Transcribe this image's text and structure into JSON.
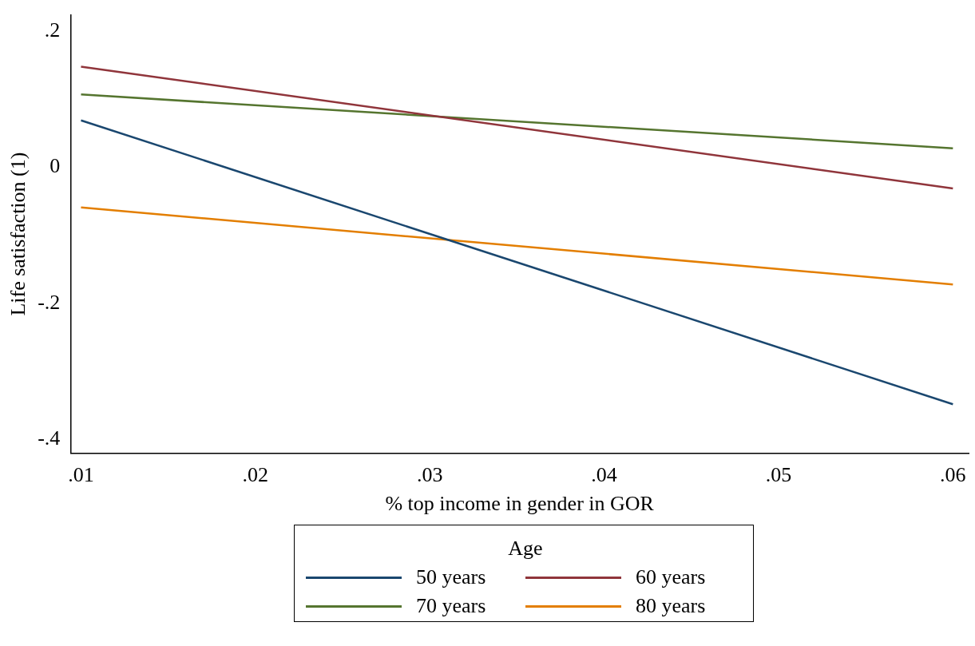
{
  "chart_data": {
    "type": "line",
    "xlabel": "% top income in gender in GOR",
    "ylabel": "Life satisfaction (1)",
    "legend_title": "Age",
    "legend": "bottom",
    "grid": false,
    "marker": "none",
    "line_style": "solid",
    "x": [
      0.01,
      0.06
    ],
    "xlim": [
      0.0094,
      0.0609
    ],
    "xticks": [
      {
        "value": 0.01,
        "label": ".01"
      },
      {
        "value": 0.02,
        "label": ".02"
      },
      {
        "value": 0.03,
        "label": ".03"
      },
      {
        "value": 0.04,
        "label": ".04"
      },
      {
        "value": 0.05,
        "label": ".05"
      },
      {
        "value": 0.06,
        "label": ".06"
      }
    ],
    "ylim": [
      -0.42,
      0.224
    ],
    "yticks": [
      {
        "value": -0.4,
        "label": "-.4"
      },
      {
        "value": -0.2,
        "label": "-.2"
      },
      {
        "value": 0,
        "label": "0"
      },
      {
        "value": 0.2,
        "label": ".2"
      }
    ],
    "series": [
      {
        "name": "50 years",
        "color": "#1a476f",
        "values": [
          0.069,
          -0.348
        ]
      },
      {
        "name": "60 years",
        "color": "#90353b",
        "values": [
          0.148,
          -0.031
        ]
      },
      {
        "name": "70 years",
        "color": "#55752f",
        "values": [
          0.107,
          0.028
        ]
      },
      {
        "name": "80 years",
        "color": "#e37e00",
        "values": [
          -0.059,
          -0.172
        ]
      }
    ]
  }
}
